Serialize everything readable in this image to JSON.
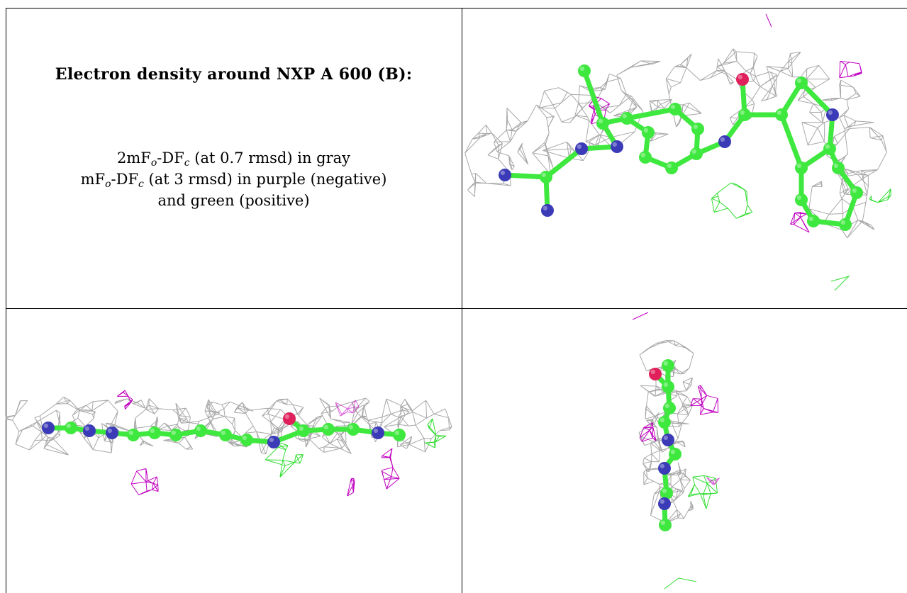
{
  "title": "Electron density around NXP A 600 (B):",
  "legend": {
    "line1": {
      "prefix": "2mF",
      "sub1": "o",
      "mid": "-DF",
      "sub2": "c",
      "suffix": " (at 0.7 rmsd) in gray"
    },
    "line2": {
      "prefix": "mF",
      "sub1": "o",
      "mid": "-DF",
      "sub2": "c",
      "suffix": " (at 3 rmsd) in purple (negative)"
    },
    "line3": "and green (positive)"
  },
  "colors": {
    "mesh_2fofc": "#a8a8a8",
    "mesh_negative": "#c000c0",
    "mesh_positive": "#33dd33",
    "carbon": "#3fe83f",
    "nitrogen": "#3b3bb8",
    "oxygen": "#e0205a"
  },
  "views": [
    {
      "name": "front view"
    },
    {
      "name": "side view"
    },
    {
      "name": "end view"
    }
  ]
}
